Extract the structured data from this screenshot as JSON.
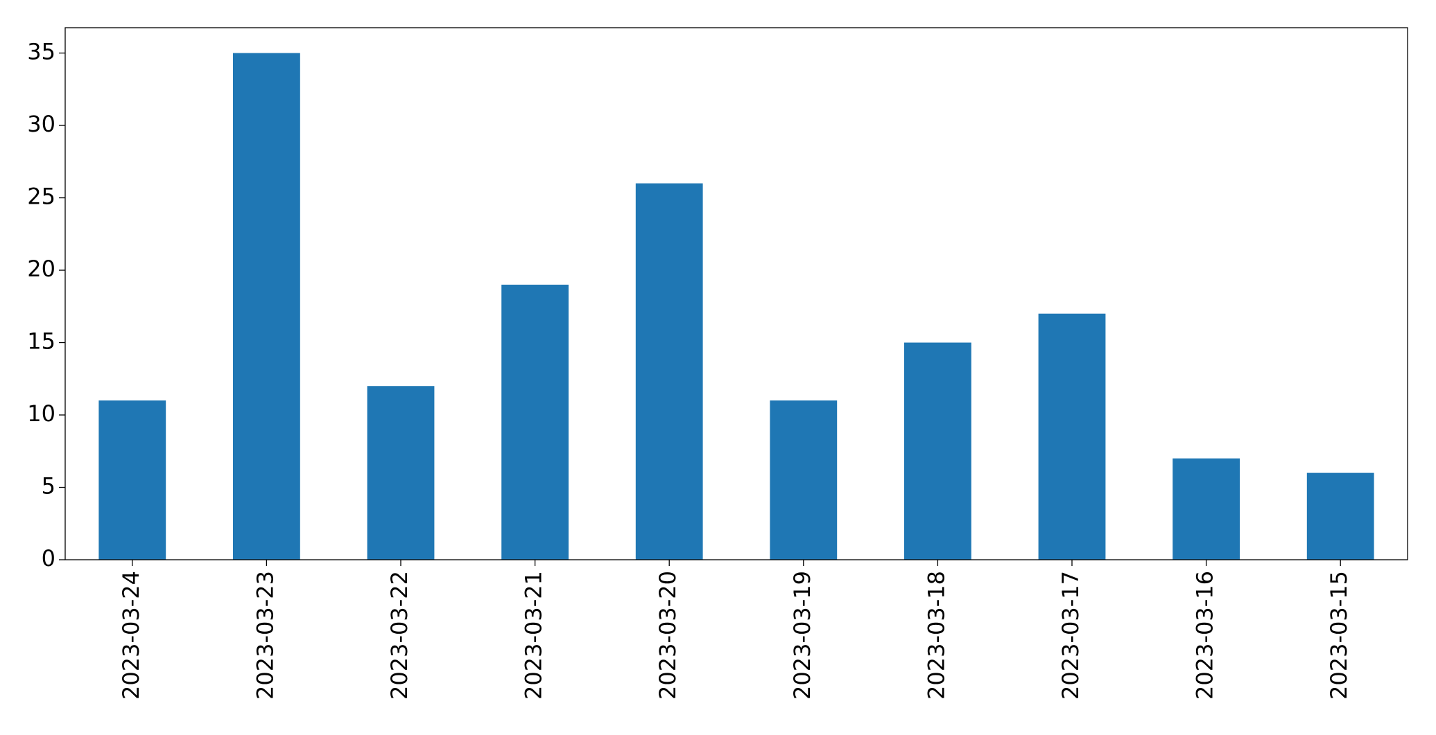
{
  "chart_data": {
    "type": "bar",
    "categories": [
      "2023-03-24",
      "2023-03-23",
      "2023-03-22",
      "2023-03-21",
      "2023-03-20",
      "2023-03-19",
      "2023-03-18",
      "2023-03-17",
      "2023-03-16",
      "2023-03-15"
    ],
    "values": [
      11,
      35,
      12,
      19,
      26,
      11,
      15,
      17,
      7,
      6
    ],
    "color": "#1f77b4",
    "ylim": [
      0,
      36.75
    ],
    "yticks": [
      0,
      5,
      10,
      15,
      20,
      25,
      30,
      35
    ],
    "grid": false
  }
}
